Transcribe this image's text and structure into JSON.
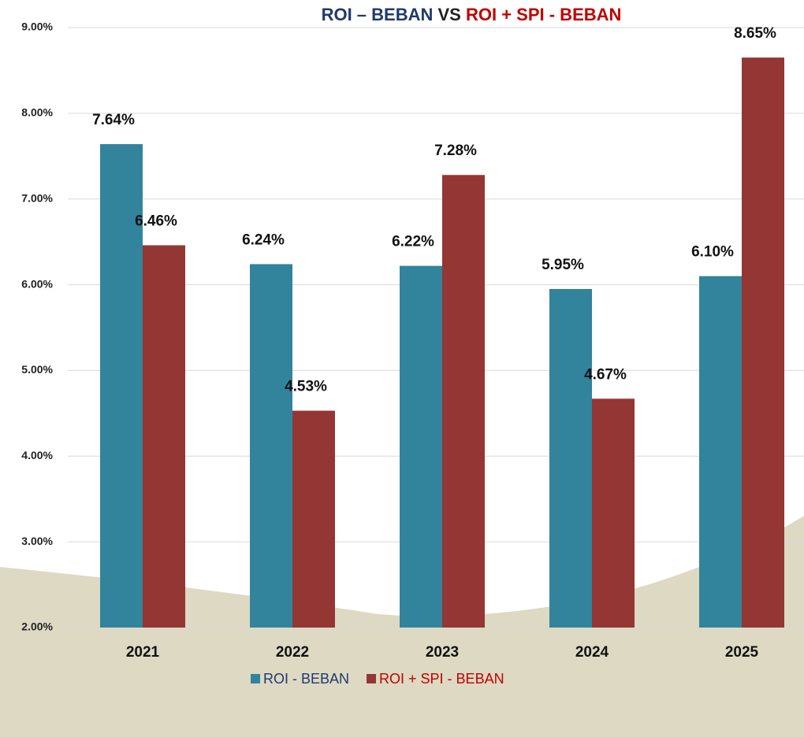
{
  "chart_data": {
    "type": "bar",
    "title": [
      "ROI – BEBAN",
      "VS",
      "ROI + SPI - BEBAN"
    ],
    "categories": [
      "2021",
      "2022",
      "2023",
      "2024",
      "2025"
    ],
    "series": [
      {
        "name": "ROI - BEBAN",
        "color": "#31849b",
        "values": [
          7.64,
          6.24,
          6.22,
          5.95,
          6.1
        ],
        "value_labels": [
          "7.64%",
          "6.24%",
          "6.22%",
          "5.95%",
          "6.10%"
        ]
      },
      {
        "name": "ROI + SPI - BEBAN",
        "color": "#943634",
        "values": [
          6.46,
          4.53,
          7.28,
          4.67,
          8.65
        ],
        "value_labels": [
          "6.46%",
          "4.53%",
          "7.28%",
          "4.67%",
          "8.65%"
        ]
      }
    ],
    "ylim": [
      2,
      9
    ],
    "yticks": [
      {
        "value": 2,
        "label": "2.00%"
      },
      {
        "value": 3,
        "label": "3.00%"
      },
      {
        "value": 4,
        "label": "4.00%"
      },
      {
        "value": 5,
        "label": "5.00%"
      },
      {
        "value": 6,
        "label": "6.00%"
      },
      {
        "value": 7,
        "label": "7.00%"
      },
      {
        "value": 8,
        "label": "8.00%"
      },
      {
        "value": 9,
        "label": "9.00%"
      }
    ],
    "grid": true,
    "legend": "bottom"
  }
}
